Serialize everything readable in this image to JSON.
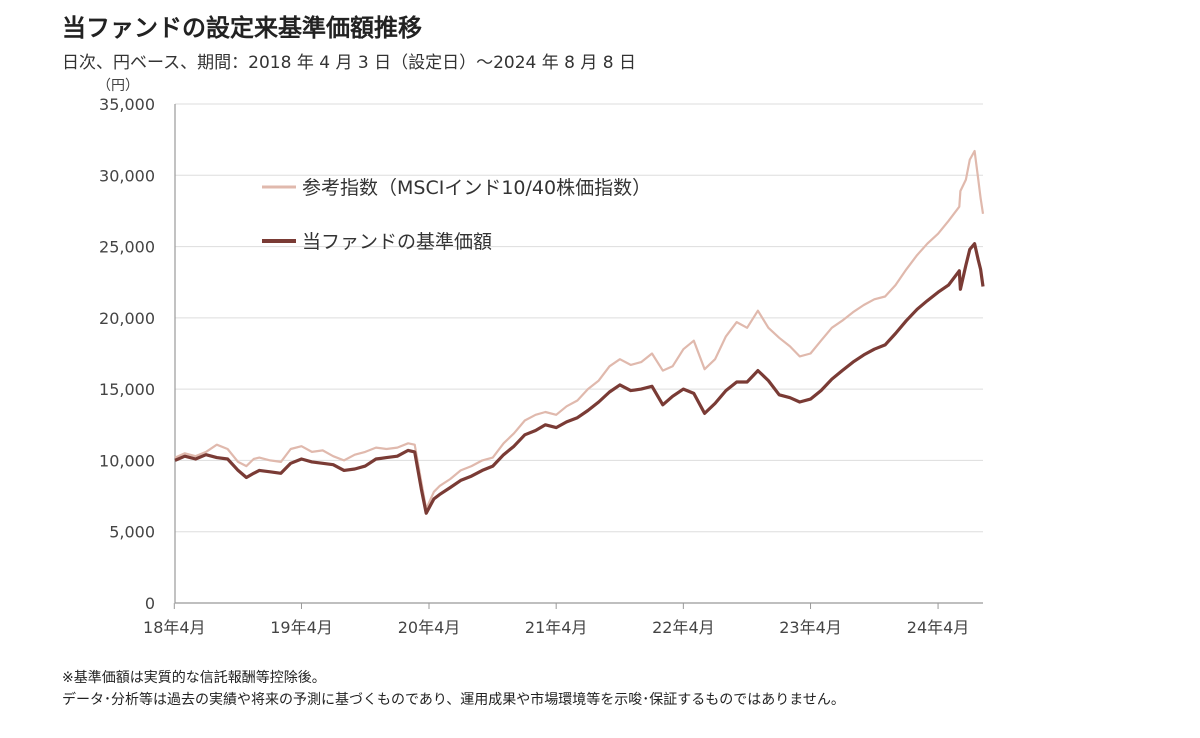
{
  "header": {
    "title": "当ファンドの設定来基準価額推移",
    "subtitle": "日次、円ベース、期間：2018 年 4 月 3 日（設定日）～2024 年 8 月 8 日"
  },
  "footnotes": [
    "※基準価額は実質的な信託報酬等控除後。",
    "データ･分析等は過去の実績や将来の予測に基づくものであり、運用成果や市場環境等を示唆･保証するものではありません。"
  ],
  "colors": {
    "reference": "#e0b9ad",
    "fund": "#7a3b35",
    "grid": "#dddddd",
    "axis": "#999999"
  },
  "chart_data": {
    "type": "line",
    "title": "当ファンドの設定来基準価額推移",
    "ylabel": "（円）",
    "ylim": [
      0,
      35000
    ],
    "yticks": [
      0,
      5000,
      10000,
      15000,
      20000,
      25000,
      30000,
      35000
    ],
    "ytick_labels": [
      "0",
      "5,000",
      "10,000",
      "15,000",
      "20,000",
      "25,000",
      "30,000",
      "35,000"
    ],
    "xlim": [
      "2018-04-03",
      "2024-08-08"
    ],
    "xticks": [
      "2018-04",
      "2019-04",
      "2020-04",
      "2021-04",
      "2022-04",
      "2023-04",
      "2024-04"
    ],
    "xtick_labels": [
      "18年4月",
      "19年4月",
      "20年4月",
      "21年4月",
      "22年4月",
      "23年4月",
      "24年4月"
    ],
    "grid": true,
    "legend": "upper-left",
    "series": [
      {
        "name": "参考指数（MSCIインド10/40株価指数）",
        "x": [
          "2018-04-03",
          "2018-05-01",
          "2018-06-01",
          "2018-07-01",
          "2018-08-01",
          "2018-09-01",
          "2018-10-01",
          "2018-10-25",
          "2018-11-15",
          "2018-12-01",
          "2019-01-01",
          "2019-02-01",
          "2019-03-01",
          "2019-04-01",
          "2019-05-01",
          "2019-06-01",
          "2019-07-01",
          "2019-08-01",
          "2019-09-01",
          "2019-10-01",
          "2019-11-01",
          "2019-12-01",
          "2020-01-01",
          "2020-02-01",
          "2020-02-20",
          "2020-03-10",
          "2020-03-24",
          "2020-04-15",
          "2020-05-01",
          "2020-06-01",
          "2020-07-01",
          "2020-08-01",
          "2020-09-01",
          "2020-10-01",
          "2020-11-01",
          "2020-12-01",
          "2021-01-01",
          "2021-02-01",
          "2021-03-01",
          "2021-04-01",
          "2021-05-01",
          "2021-06-01",
          "2021-07-01",
          "2021-08-01",
          "2021-09-01",
          "2021-10-01",
          "2021-11-01",
          "2021-12-01",
          "2022-01-01",
          "2022-02-01",
          "2022-03-01",
          "2022-04-01",
          "2022-05-01",
          "2022-06-01",
          "2022-07-01",
          "2022-08-01",
          "2022-09-01",
          "2022-10-01",
          "2022-11-01",
          "2022-12-01",
          "2023-01-01",
          "2023-02-01",
          "2023-03-01",
          "2023-04-01",
          "2023-05-01",
          "2023-06-01",
          "2023-07-01",
          "2023-08-01",
          "2023-09-01",
          "2023-10-01",
          "2023-11-01",
          "2023-12-01",
          "2024-01-01",
          "2024-02-01",
          "2024-03-01",
          "2024-04-01",
          "2024-05-01",
          "2024-06-01",
          "2024-06-04",
          "2024-06-20",
          "2024-07-01",
          "2024-07-15",
          "2024-07-25",
          "2024-08-01",
          "2024-08-08"
        ],
        "values": [
          10200,
          10500,
          10300,
          10600,
          11100,
          10800,
          9900,
          9600,
          10100,
          10200,
          10000,
          9900,
          10800,
          11000,
          10600,
          10700,
          10300,
          10000,
          10400,
          10600,
          10900,
          10800,
          10900,
          11200,
          11100,
          8500,
          6600,
          7800,
          8200,
          8700,
          9300,
          9600,
          10000,
          10200,
          11200,
          11900,
          12800,
          13200,
          13400,
          13200,
          13800,
          14200,
          15000,
          15600,
          16600,
          17100,
          16700,
          16900,
          17500,
          16300,
          16600,
          17800,
          18400,
          16400,
          17100,
          18700,
          19700,
          19300,
          20500,
          19300,
          18600,
          18000,
          17300,
          17500,
          18400,
          19300,
          19800,
          20400,
          20900,
          21300,
          21500,
          22300,
          23400,
          24400,
          25200,
          25900,
          26800,
          27800,
          28900,
          29700,
          31100,
          31700,
          29800,
          28400,
          27300
        ]
      },
      {
        "name": "当ファンドの基準価額",
        "x": [
          "2018-04-03",
          "2018-05-01",
          "2018-06-01",
          "2018-07-01",
          "2018-08-01",
          "2018-09-01",
          "2018-10-01",
          "2018-10-25",
          "2018-11-15",
          "2018-12-01",
          "2019-01-01",
          "2019-02-01",
          "2019-03-01",
          "2019-04-01",
          "2019-05-01",
          "2019-06-01",
          "2019-07-01",
          "2019-08-01",
          "2019-09-01",
          "2019-10-01",
          "2019-11-01",
          "2019-12-01",
          "2020-01-01",
          "2020-02-01",
          "2020-02-20",
          "2020-03-10",
          "2020-03-24",
          "2020-04-15",
          "2020-05-01",
          "2020-06-01",
          "2020-07-01",
          "2020-08-01",
          "2020-09-01",
          "2020-10-01",
          "2020-11-01",
          "2020-12-01",
          "2021-01-01",
          "2021-02-01",
          "2021-03-01",
          "2021-04-01",
          "2021-05-01",
          "2021-06-01",
          "2021-07-01",
          "2021-08-01",
          "2021-09-01",
          "2021-10-01",
          "2021-11-01",
          "2021-12-01",
          "2022-01-01",
          "2022-02-01",
          "2022-03-01",
          "2022-04-01",
          "2022-05-01",
          "2022-06-01",
          "2022-07-01",
          "2022-08-01",
          "2022-09-01",
          "2022-10-01",
          "2022-11-01",
          "2022-12-01",
          "2023-01-01",
          "2023-02-01",
          "2023-03-01",
          "2023-04-01",
          "2023-05-01",
          "2023-06-01",
          "2023-07-01",
          "2023-08-01",
          "2023-09-01",
          "2023-10-01",
          "2023-11-01",
          "2023-12-01",
          "2024-01-01",
          "2024-02-01",
          "2024-03-01",
          "2024-04-01",
          "2024-05-01",
          "2024-06-01",
          "2024-06-04",
          "2024-06-20",
          "2024-07-01",
          "2024-07-15",
          "2024-07-25",
          "2024-08-01",
          "2024-08-08"
        ],
        "values": [
          10000,
          10300,
          10100,
          10400,
          10200,
          10100,
          9300,
          8800,
          9100,
          9300,
          9200,
          9100,
          9800,
          10100,
          9900,
          9800,
          9700,
          9300,
          9400,
          9600,
          10100,
          10200,
          10300,
          10700,
          10600,
          8000,
          6300,
          7300,
          7600,
          8100,
          8600,
          8900,
          9300,
          9600,
          10400,
          11000,
          11800,
          12100,
          12500,
          12300,
          12700,
          13000,
          13500,
          14100,
          14800,
          15300,
          14900,
          15000,
          15200,
          13900,
          14500,
          15000,
          14700,
          13300,
          14000,
          14900,
          15500,
          15500,
          16300,
          15600,
          14600,
          14400,
          14100,
          14300,
          14900,
          15700,
          16300,
          16900,
          17400,
          17800,
          18100,
          18900,
          19800,
          20600,
          21200,
          21800,
          22300,
          23300,
          22000,
          23700,
          24800,
          25200,
          24100,
          23400,
          22200
        ]
      }
    ]
  }
}
